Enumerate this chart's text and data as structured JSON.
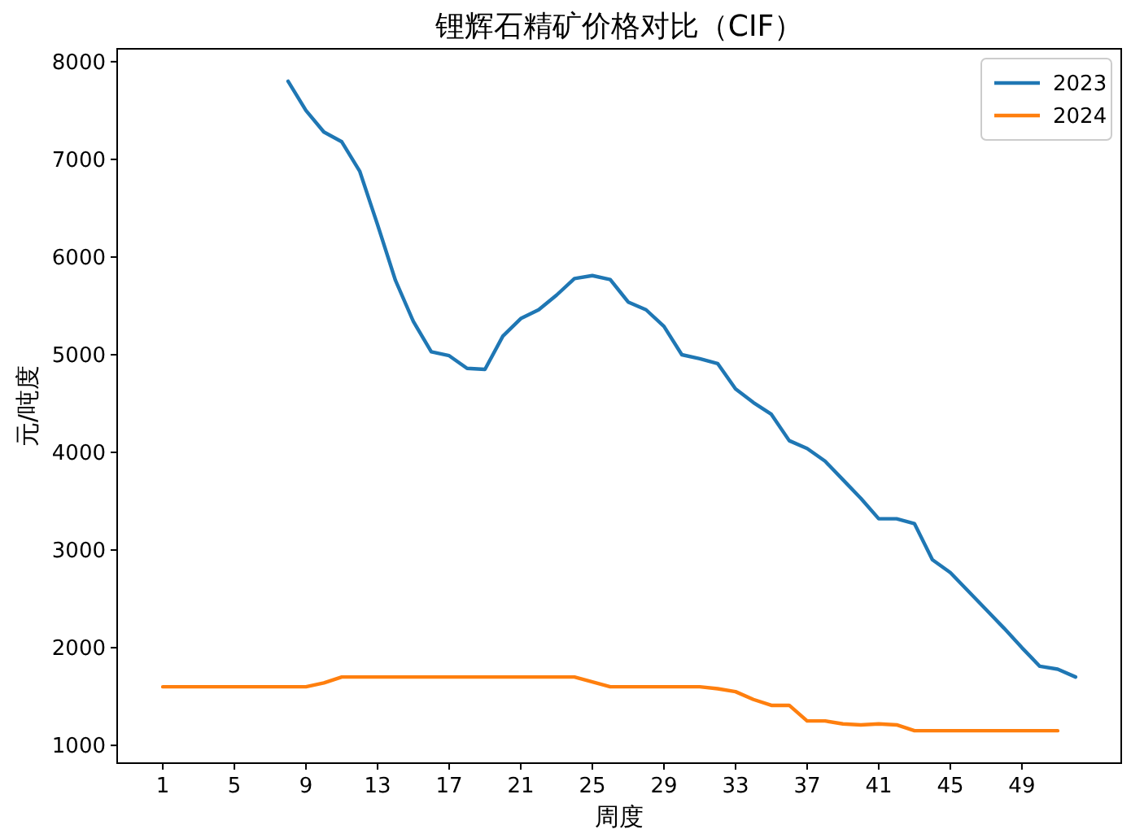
{
  "chart_data": {
    "type": "line",
    "title": "锂辉石精矿价格对比（CIF）",
    "xlabel": "周度",
    "ylabel": "元/吨度",
    "x": [
      1,
      2,
      3,
      4,
      5,
      6,
      7,
      8,
      9,
      10,
      11,
      12,
      13,
      14,
      15,
      16,
      17,
      18,
      19,
      20,
      21,
      22,
      23,
      24,
      25,
      26,
      27,
      28,
      29,
      30,
      31,
      32,
      33,
      34,
      35,
      36,
      37,
      38,
      39,
      40,
      41,
      42,
      43,
      44,
      45,
      46,
      47,
      48,
      49,
      50,
      51,
      52
    ],
    "series": [
      {
        "name": "2023",
        "color": "#1f77b4",
        "values": [
          null,
          null,
          null,
          null,
          null,
          null,
          null,
          7800,
          7500,
          7280,
          7180,
          6880,
          6330,
          5760,
          5340,
          5030,
          4990,
          4860,
          4850,
          5190,
          5370,
          5460,
          5610,
          5780,
          5810,
          5770,
          5540,
          5460,
          5290,
          5000,
          4960,
          4910,
          4650,
          4510,
          4390,
          4120,
          4040,
          3910,
          3720,
          3530,
          3320,
          3320,
          3270,
          2900,
          2770,
          2580,
          2390,
          2200,
          2000,
          1810,
          1780,
          1700
        ]
      },
      {
        "name": "2024",
        "color": "#ff7f0e",
        "values": [
          1600,
          1600,
          1600,
          1600,
          1600,
          1600,
          1600,
          1600,
          1600,
          1640,
          1700,
          1700,
          1700,
          1700,
          1700,
          1700,
          1700,
          1700,
          1700,
          1700,
          1700,
          1700,
          1700,
          1700,
          1650,
          1600,
          1600,
          1600,
          1600,
          1600,
          1600,
          1580,
          1550,
          1470,
          1410,
          1410,
          1250,
          1250,
          1220,
          1210,
          1220,
          1210,
          1150,
          1150,
          1150,
          1150,
          1150,
          1150,
          1150,
          1150,
          1150,
          null
        ]
      }
    ],
    "xlim": [
      -1.55,
      54.55
    ],
    "xticks": [
      1,
      5,
      9,
      13,
      17,
      21,
      25,
      29,
      33,
      37,
      41,
      45,
      49
    ],
    "ylim": [
      818,
      8132
    ],
    "yticks": [
      1000,
      2000,
      3000,
      4000,
      5000,
      6000,
      7000,
      8000
    ],
    "grid": false,
    "legend": "top right",
    "line_style": "solid",
    "marker": "none"
  }
}
